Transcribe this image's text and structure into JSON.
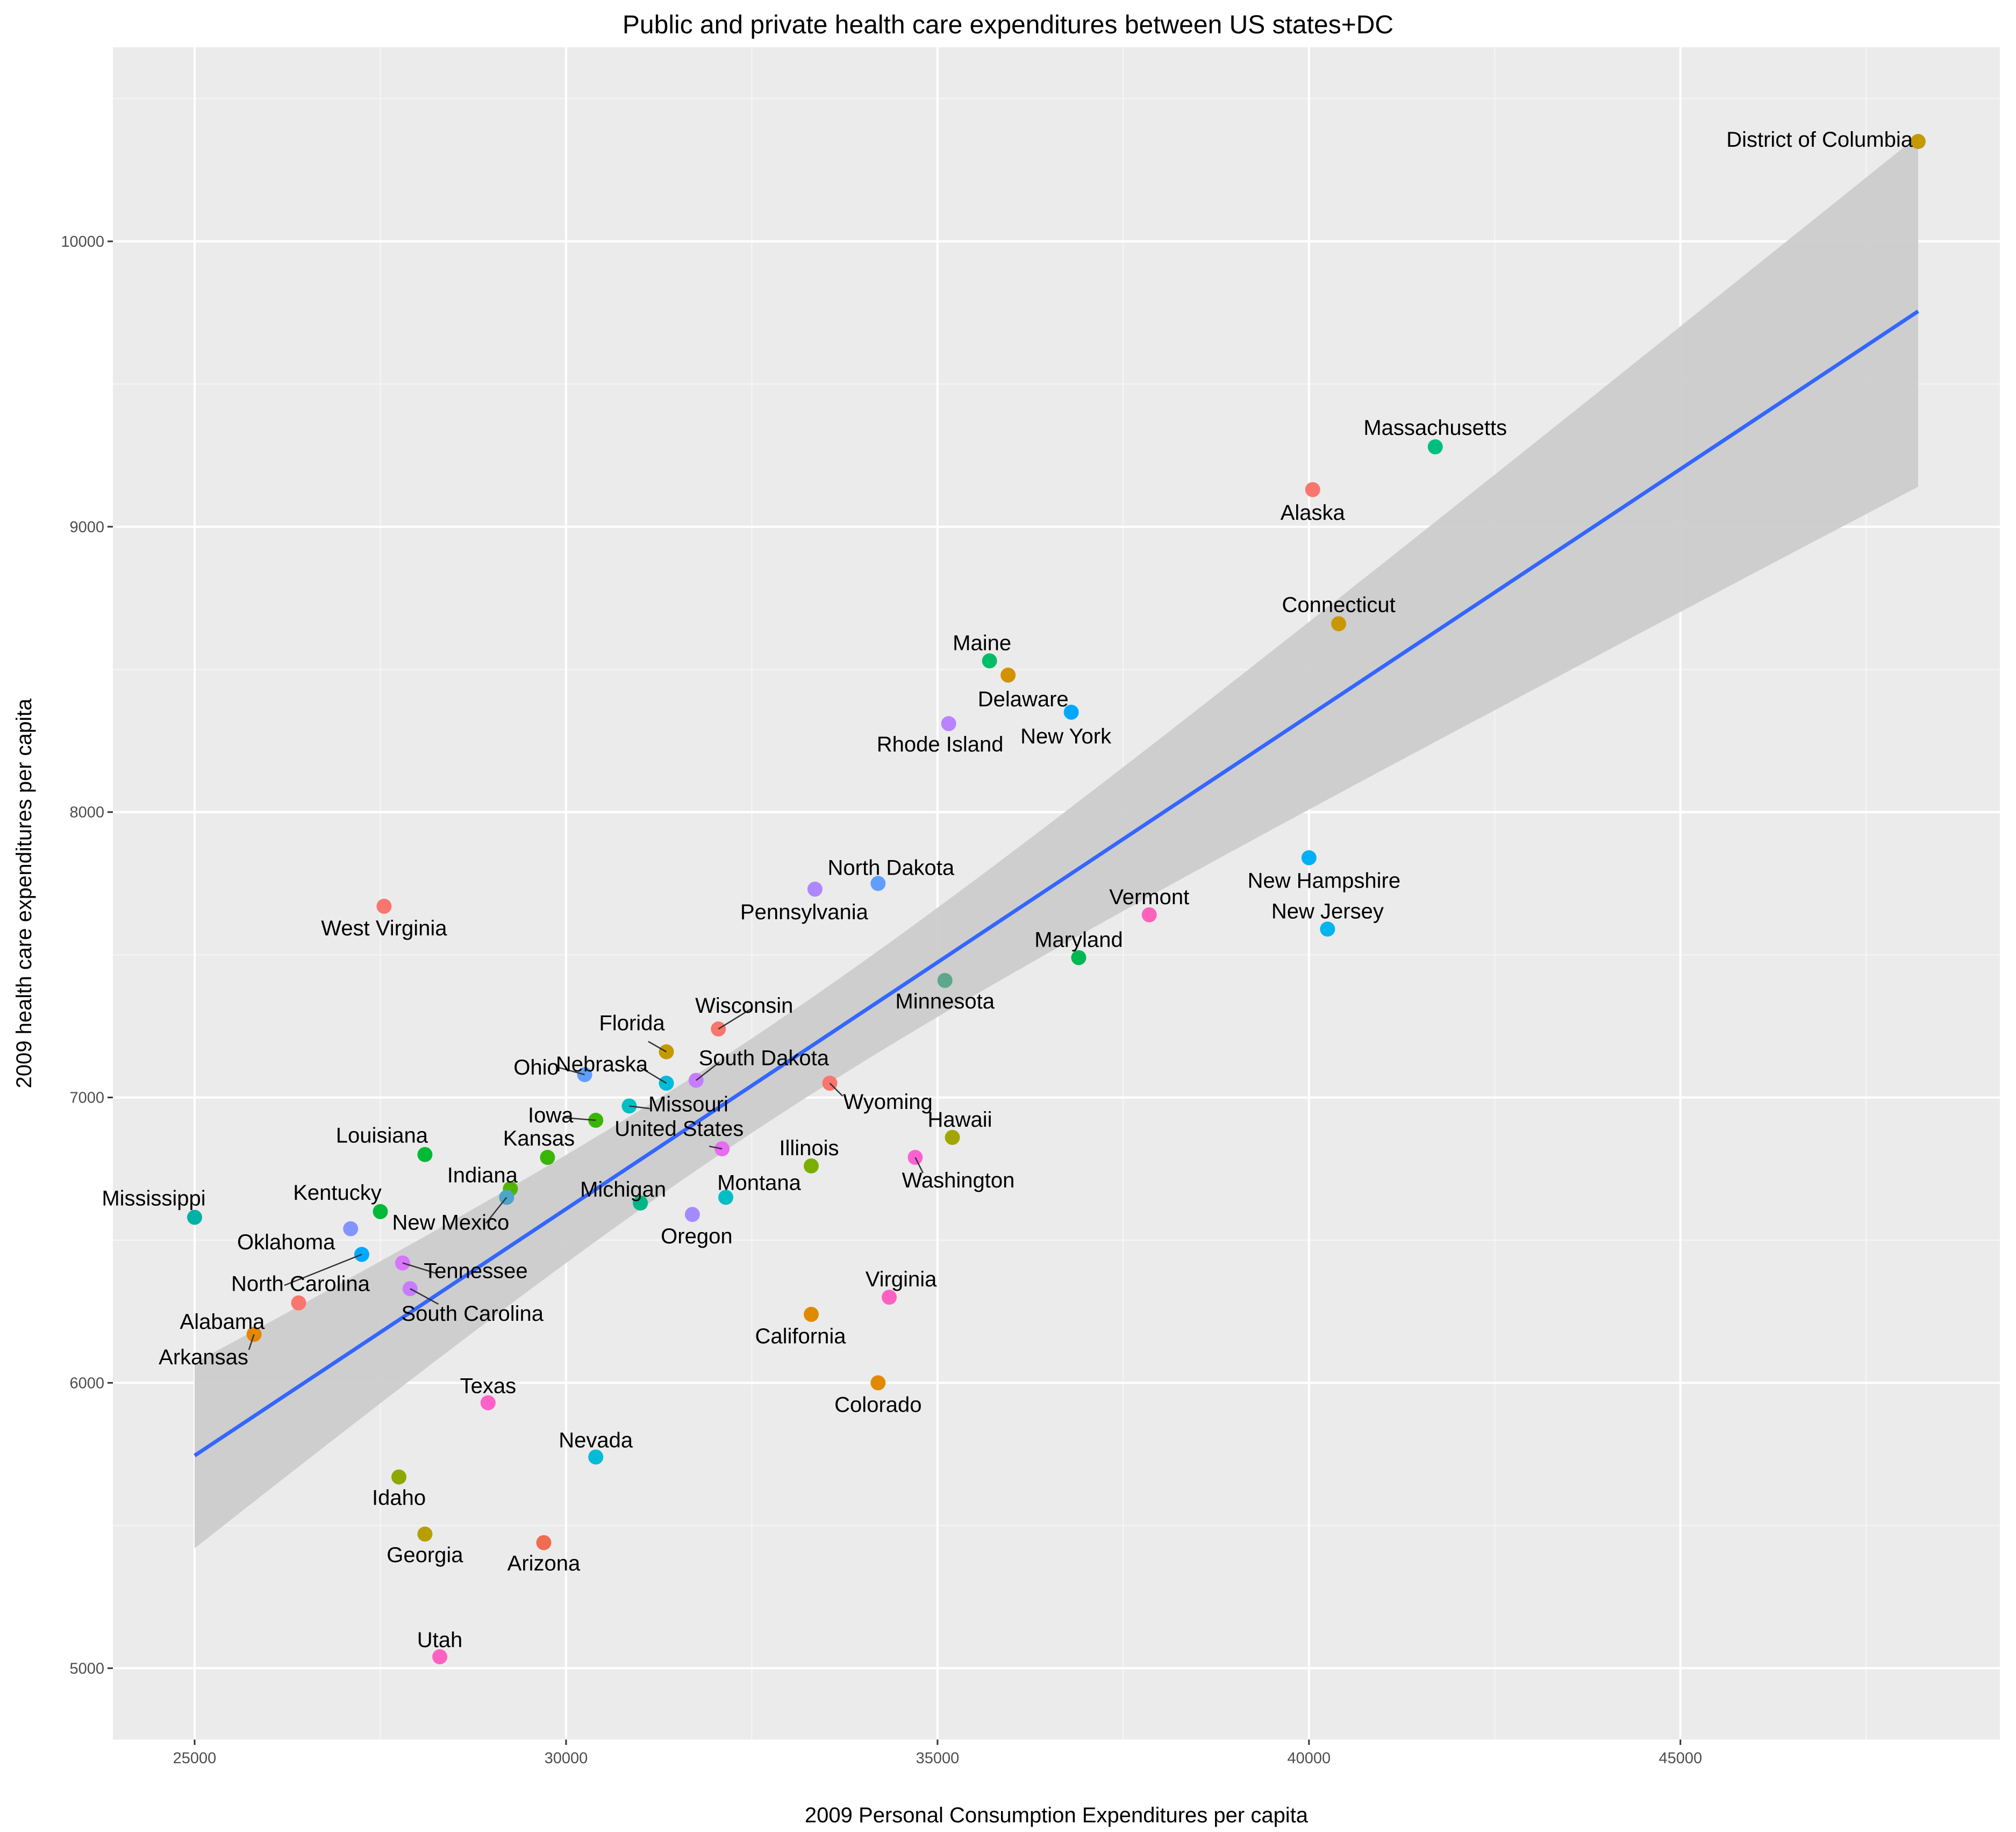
{
  "chart_data": {
    "type": "scatter",
    "title": "Public and private health care expenditures between US states+DC",
    "xlabel": "2009 Personal Consumption Expenditures per capita",
    "ylabel": "2009 health care expenditures per capita",
    "xlim": [
      23900,
      49300
    ],
    "ylim": [
      4750,
      10680
    ],
    "x_ticks": [
      25000,
      30000,
      35000,
      40000,
      45000
    ],
    "y_ticks": [
      5000,
      6000,
      7000,
      8000,
      9000,
      10000
    ],
    "grid": true,
    "legend": "none",
    "trend_line": {
      "method": "linear regression",
      "x": [
        25000,
        48200
      ],
      "y": [
        5745,
        9755
      ],
      "color": "#3366ff",
      "confidence_band": {
        "lower": [
          5420,
          9140
        ],
        "upper": [
          6070,
          10370
        ],
        "color": "#cccccc"
      }
    },
    "points": [
      {
        "label": "District of Columbia",
        "x": 48200,
        "y": 10350,
        "color": "#c49a00"
      },
      {
        "label": "Massachusetts",
        "x": 41700,
        "y": 9280,
        "color": "#00be7d"
      },
      {
        "label": "Alaska",
        "x": 40050,
        "y": 9130,
        "color": "#f8766d"
      },
      {
        "label": "Connecticut",
        "x": 40400,
        "y": 8660,
        "color": "#c99800"
      },
      {
        "label": "Maine",
        "x": 35700,
        "y": 8530,
        "color": "#00be67"
      },
      {
        "label": "Delaware",
        "x": 35950,
        "y": 8480,
        "color": "#d39200"
      },
      {
        "label": "New York",
        "x": 36800,
        "y": 8350,
        "color": "#00a9ff"
      },
      {
        "label": "Rhode Island",
        "x": 35150,
        "y": 8310,
        "color": "#b983ff"
      },
      {
        "label": "New Hampshire",
        "x": 40000,
        "y": 7840,
        "color": "#00b0f6"
      },
      {
        "label": "North Dakota",
        "x": 34200,
        "y": 7750,
        "color": "#619cff"
      },
      {
        "label": "Pennsylvania",
        "x": 33350,
        "y": 7730,
        "color": "#ae87ff"
      },
      {
        "label": "West Virginia",
        "x": 27550,
        "y": 7670,
        "color": "#f8766d"
      },
      {
        "label": "Vermont",
        "x": 37850,
        "y": 7640,
        "color": "#ff62bc"
      },
      {
        "label": "New Jersey",
        "x": 40250,
        "y": 7590,
        "color": "#00b4f0"
      },
      {
        "label": "Maryland",
        "x": 36900,
        "y": 7490,
        "color": "#00b853"
      },
      {
        "label": "Minnesota",
        "x": 35100,
        "y": 7410,
        "color": "#5ea78c"
      },
      {
        "label": "Wisconsin",
        "x": 32050,
        "y": 7240,
        "color": "#f8766d"
      },
      {
        "label": "Florida",
        "x": 31350,
        "y": 7160,
        "color": "#c49a00"
      },
      {
        "label": "Ohio",
        "x": 30250,
        "y": 7080,
        "color": "#619cff"
      },
      {
        "label": "Nebraska",
        "x": 31350,
        "y": 7050,
        "color": "#00bcd8"
      },
      {
        "label": "South Dakota",
        "x": 31750,
        "y": 7060,
        "color": "#c77cff"
      },
      {
        "label": "Wyoming",
        "x": 33550,
        "y": 7050,
        "color": "#f8766d"
      },
      {
        "label": "Missouri",
        "x": 30850,
        "y": 6970,
        "color": "#00bfc4"
      },
      {
        "label": "Iowa",
        "x": 30400,
        "y": 6920,
        "color": "#39b600"
      },
      {
        "label": "Hawaii",
        "x": 35200,
        "y": 6860,
        "color": "#a3a500"
      },
      {
        "label": "United States",
        "x": 32100,
        "y": 6820,
        "color": "#e76bf3"
      },
      {
        "label": "Louisiana",
        "x": 28100,
        "y": 6800,
        "color": "#00ba38"
      },
      {
        "label": "Kansas",
        "x": 29750,
        "y": 6790,
        "color": "#39b600"
      },
      {
        "label": "Washington",
        "x": 34700,
        "y": 6790,
        "color": "#fd61d1"
      },
      {
        "label": "Illinois",
        "x": 33300,
        "y": 6760,
        "color": "#7cae00"
      },
      {
        "label": "Indiana",
        "x": 29250,
        "y": 6680,
        "color": "#53b400"
      },
      {
        "label": "New Mexico",
        "x": 29200,
        "y": 6650,
        "color": "#4da5c9"
      },
      {
        "label": "Montana",
        "x": 32150,
        "y": 6650,
        "color": "#00bfc4"
      },
      {
        "label": "Michigan",
        "x": 31000,
        "y": 6630,
        "color": "#00b686"
      },
      {
        "label": "Kentucky",
        "x": 27500,
        "y": 6600,
        "color": "#00b938"
      },
      {
        "label": "Oregon",
        "x": 31700,
        "y": 6590,
        "color": "#a58aff"
      },
      {
        "label": "Mississippi",
        "x": 25000,
        "y": 6580,
        "color": "#00b2a5"
      },
      {
        "label": "Oklahoma",
        "x": 27100,
        "y": 6540,
        "color": "#8494ff"
      },
      {
        "label": "North Carolina",
        "x": 27250,
        "y": 6450,
        "color": "#00a9ff"
      },
      {
        "label": "Tennessee",
        "x": 27800,
        "y": 6420,
        "color": "#d874fd"
      },
      {
        "label": "South Carolina",
        "x": 27900,
        "y": 6330,
        "color": "#c77cff"
      },
      {
        "label": "Virginia",
        "x": 34350,
        "y": 6300,
        "color": "#ff61c3"
      },
      {
        "label": "Alabama",
        "x": 26400,
        "y": 6280,
        "color": "#f8766d"
      },
      {
        "label": "California",
        "x": 33300,
        "y": 6240,
        "color": "#e18a00"
      },
      {
        "label": "Arkansas",
        "x": 25800,
        "y": 6170,
        "color": "#e58700"
      },
      {
        "label": "Colorado",
        "x": 34200,
        "y": 6000,
        "color": "#e18a00"
      },
      {
        "label": "Texas",
        "x": 28950,
        "y": 5930,
        "color": "#ff61c9"
      },
      {
        "label": "Nevada",
        "x": 30400,
        "y": 5740,
        "color": "#00bcd8"
      },
      {
        "label": "Idaho",
        "x": 27750,
        "y": 5670,
        "color": "#8fa800"
      },
      {
        "label": "Georgia",
        "x": 28100,
        "y": 5470,
        "color": "#b79f00"
      },
      {
        "label": "Arizona",
        "x": 29700,
        "y": 5440,
        "color": "#f06b4f"
      },
      {
        "label": "Utah",
        "x": 28300,
        "y": 5040,
        "color": "#ff61c3"
      }
    ]
  }
}
